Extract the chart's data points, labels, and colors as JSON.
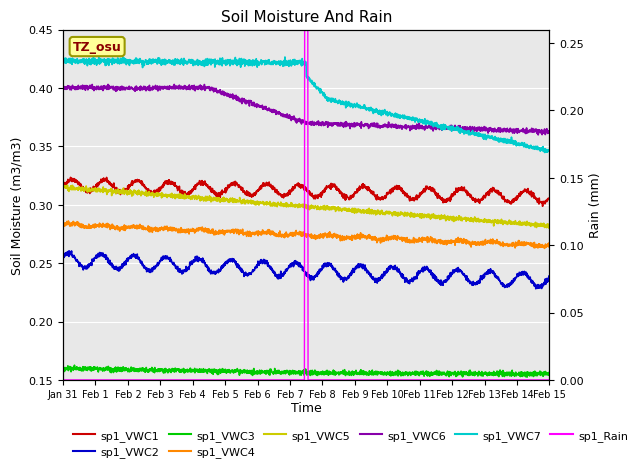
{
  "title": "Soil Moisture And Rain",
  "xlabel": "Time",
  "ylabel_left": "Soil Moisture (m3/m3)",
  "ylabel_right": "Rain (mm)",
  "ylim_left": [
    0.15,
    0.45
  ],
  "ylim_right": [
    0.0,
    0.26
  ],
  "x_tick_labels": [
    "Jan 31",
    "Feb 1",
    "Feb 2",
    "Feb 3",
    "Feb 4",
    "Feb 5",
    "Feb 6",
    "Feb 7",
    "Feb 8",
    "Feb 9",
    "Feb 10",
    "Feb 11",
    "Feb 12",
    "Feb 13",
    "Feb 14",
    "Feb 15"
  ],
  "vline_day": 7.5,
  "vline_color": "magenta",
  "station_label": "TZ_osu",
  "station_box_facecolor": "#FFFF99",
  "station_box_edgecolor": "#999900",
  "background_color": "#E8E8E8",
  "colors": {
    "sp1_VWC1": "#CC0000",
    "sp1_VWC2": "#0000CC",
    "sp1_VWC3": "#00CC00",
    "sp1_VWC4": "#FF8800",
    "sp1_VWC5": "#CCCC00",
    "sp1_VWC6": "#8800AA",
    "sp1_VWC7": "#00CCCC",
    "sp1_Rain": "magenta"
  },
  "legend_row1": [
    {
      "label": "sp1_VWC1",
      "color": "#CC0000"
    },
    {
      "label": "sp1_VWC2",
      "color": "#0000CC"
    },
    {
      "label": "sp1_VWC3",
      "color": "#00CC00"
    },
    {
      "label": "sp1_VWC4",
      "color": "#FF8800"
    },
    {
      "label": "sp1_VWC5",
      "color": "#CCCC00"
    },
    {
      "label": "sp1_VWC6",
      "color": "#8800AA"
    }
  ],
  "legend_row2": [
    {
      "label": "sp1_VWC7",
      "color": "#00CCCC"
    },
    {
      "label": "sp1_Rain",
      "color": "magenta"
    }
  ]
}
